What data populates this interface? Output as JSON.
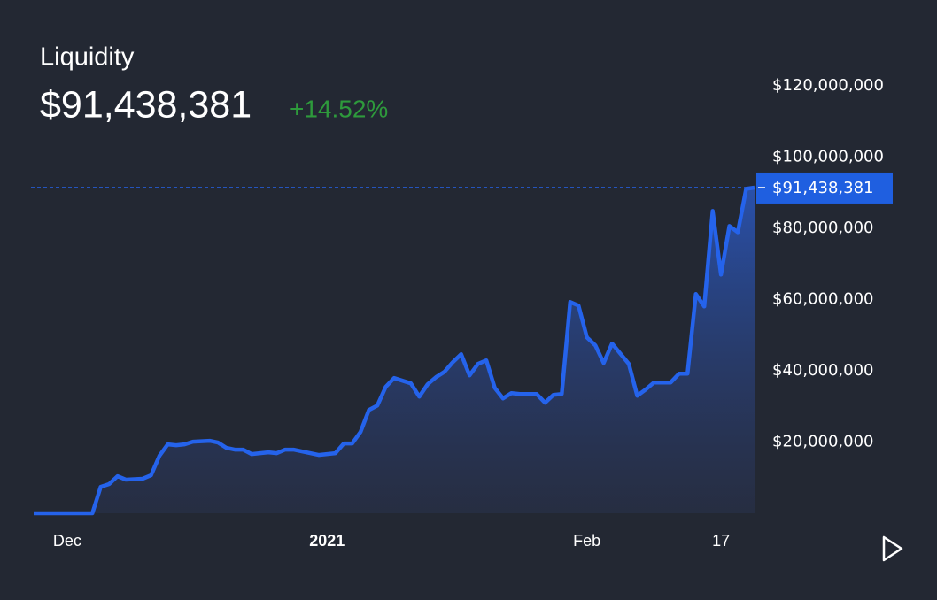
{
  "chart_data": {
    "type": "area",
    "title": "Liquidity",
    "current_value": {
      "value": 91438381,
      "label": "$91,438,381"
    },
    "change": "+14.52%",
    "x": [
      -35,
      -28,
      -27,
      -26,
      -25,
      -24,
      -22,
      -21,
      -20,
      -19,
      -18,
      -17,
      -16,
      -14,
      -13,
      -12,
      -11,
      -10,
      -9,
      -7,
      -6,
      -5,
      -4,
      -2,
      -1,
      1,
      2,
      3,
      4,
      5,
      6,
      7,
      8,
      10,
      11,
      12,
      13,
      14,
      15,
      16,
      17,
      18,
      19,
      20,
      21,
      22,
      23,
      25,
      26,
      27,
      28,
      29,
      30,
      31,
      32,
      33,
      34,
      36,
      37,
      38,
      39,
      41,
      42,
      43,
      44,
      45,
      46,
      47,
      48,
      49,
      50,
      51
    ],
    "series": [
      {
        "name": "Liquidity",
        "color": "#2563eb",
        "values": [
          0,
          0,
          7440000,
          8190000,
          10420000,
          9430000,
          9680000,
          10670000,
          16130000,
          19350000,
          19110000,
          19350000,
          20100000,
          20350000,
          19850000,
          18360000,
          17870000,
          17870000,
          16630000,
          17120000,
          16870000,
          17870000,
          17870000,
          16870000,
          16380000,
          16870000,
          19600000,
          19600000,
          22830000,
          29030000,
          30270000,
          35480000,
          37970000,
          36480000,
          32750000,
          36230000,
          38210000,
          39700000,
          42430000,
          44670000,
          38710000,
          41940000,
          42930000,
          35240000,
          32260000,
          33750000,
          33500000,
          33500000,
          31020000,
          33250000,
          33500000,
          59300000,
          58310000,
          49380000,
          47150000,
          42180000,
          47640000,
          41940000,
          33000000,
          34740000,
          36720000,
          36720000,
          39210000,
          39210000,
          61540000,
          58060000,
          84860000,
          67000000,
          80650000,
          78910000,
          91070000,
          91438381
        ]
      }
    ],
    "xlim": [
      -35,
      51
    ],
    "xticks": [
      {
        "value": -31,
        "label": "Dec"
      },
      {
        "value": 0,
        "label": "2021"
      },
      {
        "value": 31,
        "label": "Feb"
      },
      {
        "value": 47,
        "label": "17"
      }
    ],
    "ylim": [
      0,
      120000000
    ],
    "yticks": [
      {
        "value": 20000000,
        "label": "$20,000,000"
      },
      {
        "value": 40000000,
        "label": "$40,000,000"
      },
      {
        "value": 60000000,
        "label": "$60,000,000"
      },
      {
        "value": 80000000,
        "label": "$80,000,000"
      },
      {
        "value": 100000000,
        "label": "$100,000,000"
      },
      {
        "value": 120000000,
        "label": "$120,000,000"
      }
    ]
  }
}
